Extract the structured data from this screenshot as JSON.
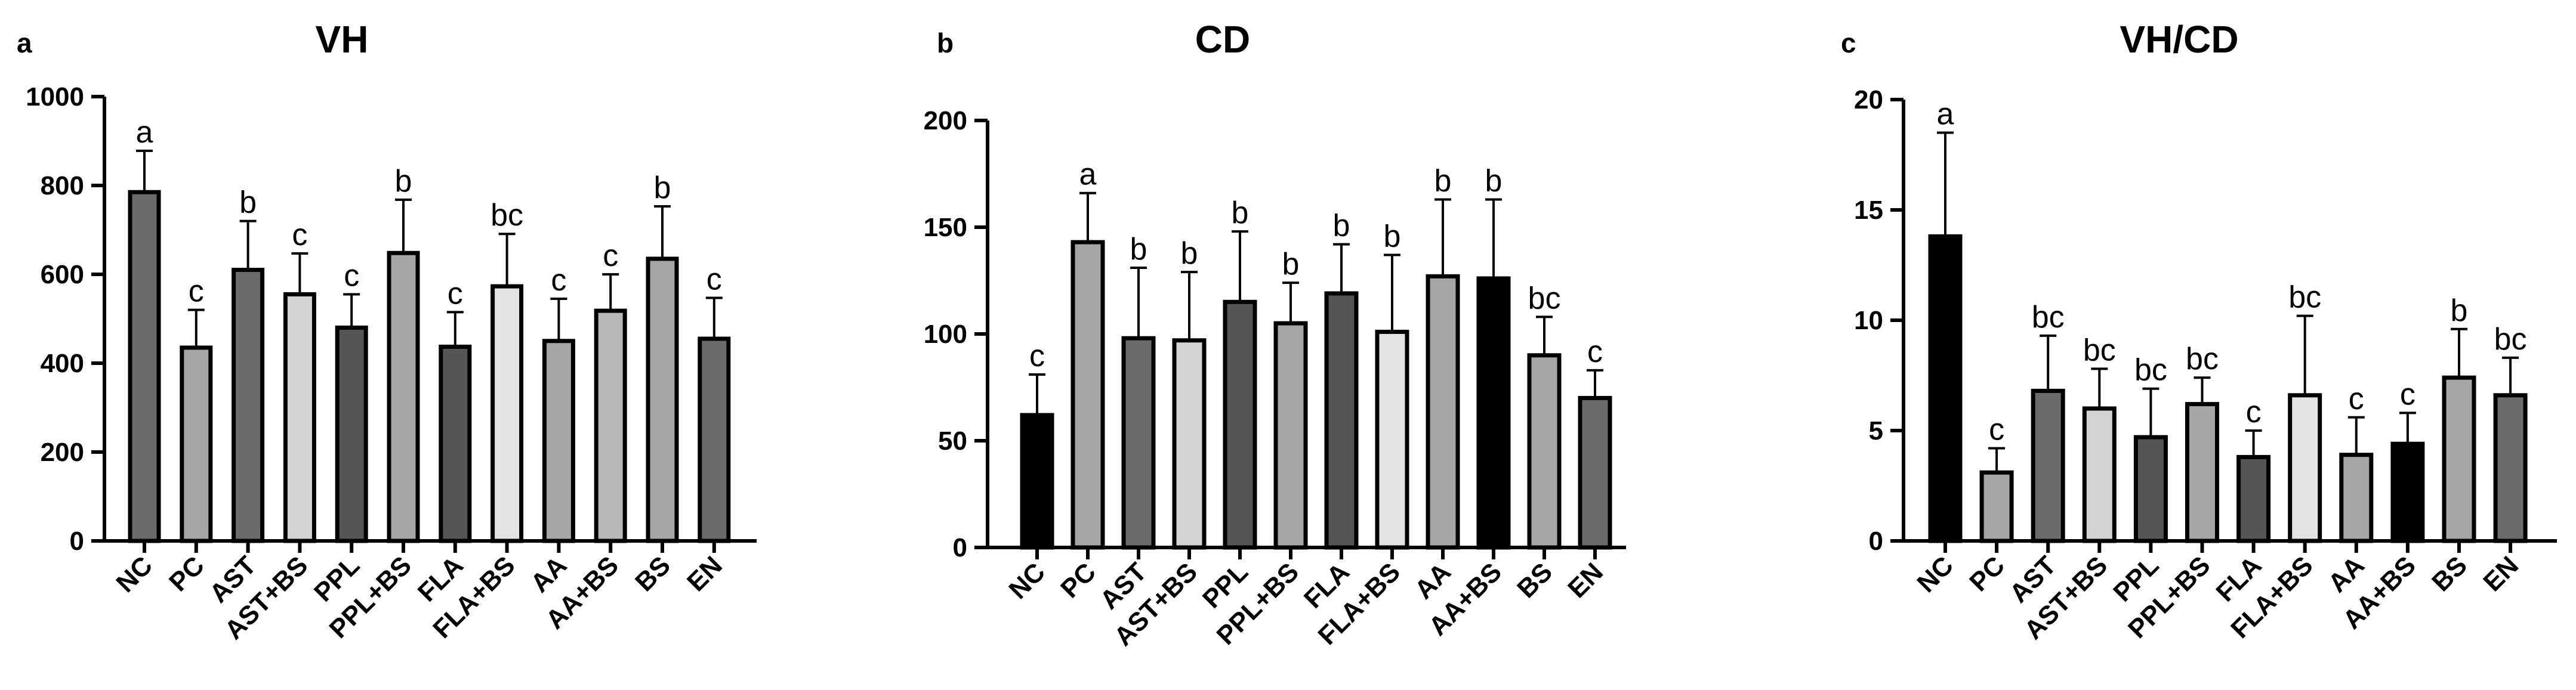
{
  "chart_data": [
    {
      "type": "bar",
      "panel": "a",
      "title": "VH",
      "xlabel": "",
      "ylabel": "",
      "ylim": [
        0,
        1000
      ],
      "yticks": [
        0,
        200,
        400,
        600,
        800,
        1000
      ],
      "categories": [
        "NC",
        "PC",
        "AST",
        "AST+BS",
        "PPL",
        "PPL+BS",
        "FLA",
        "FLA+BS",
        "AA",
        "AA+BS",
        "BS",
        "EN"
      ],
      "values": [
        785,
        435,
        610,
        555,
        480,
        648,
        437,
        573,
        450,
        518,
        635,
        455
      ],
      "errors": [
        93,
        85,
        110,
        92,
        75,
        120,
        78,
        118,
        95,
        82,
        118,
        92
      ],
      "labels": [
        "a",
        "c",
        "b",
        "c",
        "c",
        "b",
        "c",
        "bc",
        "c",
        "c",
        "b",
        "c"
      ],
      "colors": [
        "#6b6b6b",
        "#a6a6a6",
        "#6b6b6b",
        "#d4d4d4",
        "#555555",
        "#a6a6a6",
        "#555555",
        "#e3e3e3",
        "#a6a6a6",
        "#b8b8b8",
        "#a6a6a6",
        "#6b6b6b"
      ]
    },
    {
      "type": "bar",
      "panel": "b",
      "title": "CD",
      "xlabel": "",
      "ylabel": "",
      "ylim": [
        0,
        200
      ],
      "yticks": [
        0,
        50,
        100,
        150,
        200
      ],
      "categories": [
        "NC",
        "PC",
        "AST",
        "AST+BS",
        "PPL",
        "PPL+BS",
        "FLA",
        "FLA+BS",
        "AA",
        "AA+BS",
        "BS",
        "EN"
      ],
      "values": [
        62,
        143,
        98,
        97,
        115,
        105,
        119,
        101,
        127,
        126,
        90,
        70
      ],
      "errors": [
        19,
        23,
        33,
        32,
        33,
        19,
        23,
        36,
        36,
        37,
        18,
        13
      ],
      "labels": [
        "c",
        "a",
        "b",
        "b",
        "b",
        "b",
        "b",
        "b",
        "b",
        "b",
        "bc",
        "c"
      ],
      "colors": [
        "#000000",
        "#a6a6a6",
        "#6b6b6b",
        "#d4d4d4",
        "#555555",
        "#a6a6a6",
        "#555555",
        "#e3e3e3",
        "#a6a6a6",
        "#000000",
        "#a6a6a6",
        "#6b6b6b"
      ]
    },
    {
      "type": "bar",
      "panel": "c",
      "title": "VH/CD",
      "xlabel": "",
      "ylabel": "",
      "ylim": [
        0,
        20
      ],
      "yticks": [
        0,
        5,
        10,
        15,
        20
      ],
      "categories": [
        "NC",
        "PC",
        "AST",
        "AST+BS",
        "PPL",
        "PPL+BS",
        "FLA",
        "FLA+BS",
        "AA",
        "AA+BS",
        "BS",
        "EN"
      ],
      "values": [
        13.8,
        3.1,
        6.8,
        6.0,
        4.7,
        6.2,
        3.8,
        6.6,
        3.9,
        4.4,
        7.4,
        6.6
      ],
      "errors": [
        4.7,
        1.1,
        2.5,
        1.8,
        2.2,
        1.2,
        1.2,
        3.6,
        1.7,
        1.4,
        2.2,
        1.7
      ],
      "labels": [
        "a",
        "c",
        "bc",
        "bc",
        "bc",
        "bc",
        "c",
        "bc",
        "c",
        "c",
        "b",
        "bc"
      ],
      "colors": [
        "#000000",
        "#a6a6a6",
        "#6b6b6b",
        "#d4d4d4",
        "#555555",
        "#a6a6a6",
        "#555555",
        "#e3e3e3",
        "#a6a6a6",
        "#000000",
        "#a6a6a6",
        "#6b6b6b"
      ]
    }
  ]
}
